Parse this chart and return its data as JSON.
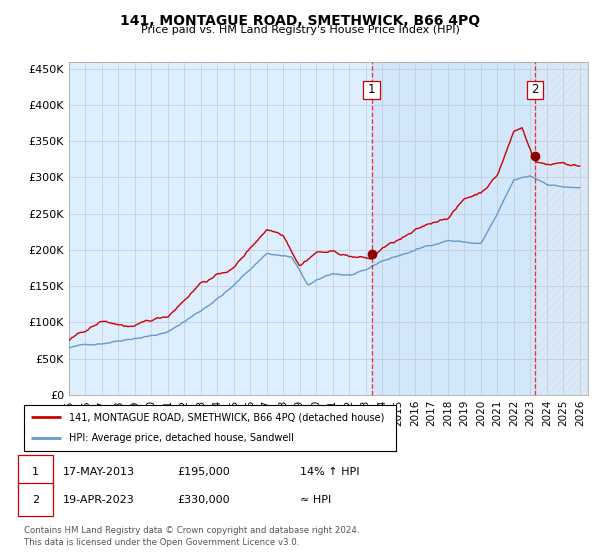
{
  "title": "141, MONTAGUE ROAD, SMETHWICK, B66 4PQ",
  "subtitle": "Price paid vs. HM Land Registry's House Price Index (HPI)",
  "ylabel_ticks": [
    "£0",
    "£50K",
    "£100K",
    "£150K",
    "£200K",
    "£250K",
    "£300K",
    "£350K",
    "£400K",
    "£450K"
  ],
  "ytick_vals": [
    0,
    50000,
    100000,
    150000,
    200000,
    250000,
    300000,
    350000,
    400000,
    450000
  ],
  "ylim": [
    0,
    460000
  ],
  "xlim_start": 1995.0,
  "xlim_end": 2026.5,
  "hpi_color": "#6699cc",
  "price_color": "#cc0000",
  "bg_color": "#ddeeff",
  "grid_color": "#c0c8d8",
  "event1_x": 2013.37,
  "event1_y": 195000,
  "event1_label": "1",
  "event1_date": "17-MAY-2013",
  "event1_price": "£195,000",
  "event1_hpi": "14% ↑ HPI",
  "event2_x": 2023.29,
  "event2_y": 330000,
  "event2_label": "2",
  "event2_date": "19-APR-2023",
  "event2_price": "£330,000",
  "event2_hpi": "≈ HPI",
  "legend_line1": "141, MONTAGUE ROAD, SMETHWICK, B66 4PQ (detached house)",
  "legend_line2": "HPI: Average price, detached house, Sandwell",
  "footnote": "Contains HM Land Registry data © Crown copyright and database right 2024.\nThis data is licensed under the Open Government Licence v3.0.",
  "x_years": [
    1995,
    1996,
    1997,
    1998,
    1999,
    2000,
    2001,
    2002,
    2003,
    2004,
    2005,
    2006,
    2007,
    2008,
    2009,
    2010,
    2011,
    2012,
    2013,
    2014,
    2015,
    2016,
    2017,
    2018,
    2019,
    2020,
    2021,
    2022,
    2023,
    2024,
    2025,
    2026
  ]
}
